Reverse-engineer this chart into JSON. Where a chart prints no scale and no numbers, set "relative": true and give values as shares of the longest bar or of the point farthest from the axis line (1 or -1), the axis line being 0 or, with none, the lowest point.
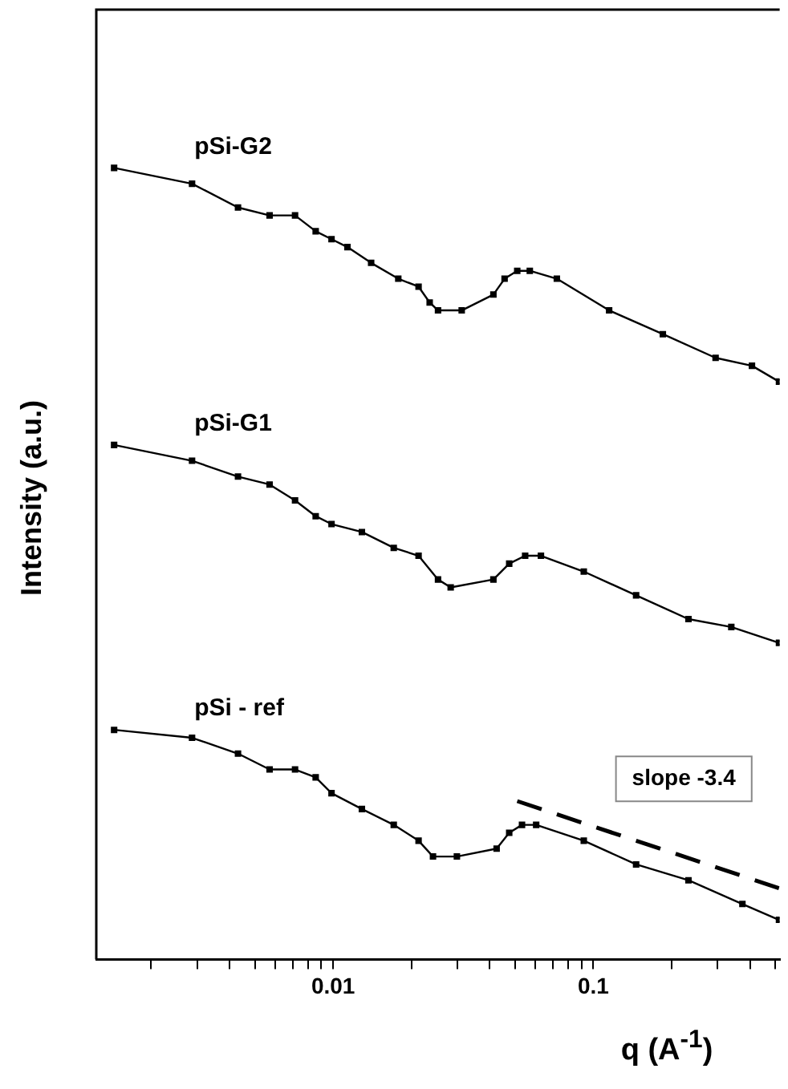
{
  "chart_data": {
    "type": "line",
    "xlabel": "q (A$^{-1}$)",
    "ylabel": "Intensity (a.u.)",
    "log": "x",
    "relative": true,
    "grid": false,
    "legend": false,
    "marker": "square",
    "xlim": [
      0.00123,
      0.52
    ],
    "xticks": [
      {
        "value": 0.002,
        "label": null
      },
      {
        "value": 0.003,
        "label": null
      },
      {
        "value": 0.004,
        "label": null
      },
      {
        "value": 0.005,
        "label": null
      },
      {
        "value": 0.006,
        "label": null
      },
      {
        "value": 0.007,
        "label": null
      },
      {
        "value": 0.008,
        "label": null
      },
      {
        "value": 0.009,
        "label": null
      },
      0.01,
      {
        "value": 0.02,
        "label": null
      },
      {
        "value": 0.03,
        "label": null
      },
      {
        "value": 0.04,
        "label": null
      },
      {
        "value": 0.05,
        "label": null
      },
      {
        "value": 0.06,
        "label": null
      },
      {
        "value": 0.07,
        "label": null
      },
      {
        "value": 0.08,
        "label": null
      },
      {
        "value": 0.09,
        "label": null
      },
      0.1,
      {
        "value": 0.2,
        "label": null
      },
      {
        "value": 0.3,
        "label": null
      },
      {
        "value": 0.4,
        "label": null
      },
      {
        "value": 0.5,
        "label": null
      }
    ],
    "annotations": [
      "slope -3.4"
    ],
    "series": [
      {
        "name": "pSi-G2",
        "color": "#000000",
        "x": [
          0.00144,
          0.00287,
          0.00431,
          0.0057,
          0.00714,
          0.00857,
          0.00986,
          0.01135,
          0.014,
          0.0178,
          0.0213,
          0.0235,
          0.0253,
          0.0312,
          0.0413,
          0.0456,
          0.051,
          0.057,
          0.0724,
          0.115,
          0.185,
          0.295,
          0.407,
          0.517
        ],
        "values": [
          1.0,
          0.98,
          0.95,
          0.94,
          0.94,
          0.92,
          0.91,
          0.9,
          0.88,
          0.86,
          0.85,
          0.83,
          0.82,
          0.82,
          0.84,
          0.86,
          0.87,
          0.87,
          0.86,
          0.82,
          0.79,
          0.76,
          0.75,
          0.73
        ]
      },
      {
        "name": "pSi-G1",
        "color": "#000000",
        "x": [
          0.00144,
          0.00287,
          0.00431,
          0.0057,
          0.00714,
          0.00857,
          0.00986,
          0.0129,
          0.0171,
          0.0213,
          0.0253,
          0.0283,
          0.0413,
          0.0475,
          0.0547,
          0.0629,
          0.0919,
          0.146,
          0.232,
          0.339,
          0.517
        ],
        "values": [
          0.65,
          0.63,
          0.61,
          0.6,
          0.58,
          0.56,
          0.55,
          0.54,
          0.52,
          0.51,
          0.48,
          0.47,
          0.48,
          0.5,
          0.51,
          0.51,
          0.49,
          0.46,
          0.43,
          0.42,
          0.4
        ]
      },
      {
        "name": "pSi - ref",
        "color": "#000000",
        "x": [
          0.00144,
          0.00287,
          0.00431,
          0.0057,
          0.00714,
          0.00857,
          0.00986,
          0.0129,
          0.0171,
          0.0213,
          0.0242,
          0.0299,
          0.0425,
          0.0475,
          0.0532,
          0.0603,
          0.0919,
          0.146,
          0.232,
          0.374,
          0.517
        ],
        "values": [
          0.29,
          0.28,
          0.26,
          0.24,
          0.24,
          0.23,
          0.21,
          0.19,
          0.17,
          0.15,
          0.13,
          0.13,
          0.14,
          0.16,
          0.17,
          0.17,
          0.15,
          0.12,
          0.1,
          0.07,
          0.05
        ]
      },
      {
        "type": "line",
        "color": "#000000",
        "line_style": "dashed",
        "marker": "none",
        "x": [
          0.051,
          0.517
        ],
        "values": [
          0.2,
          0.09
        ]
      }
    ]
  }
}
